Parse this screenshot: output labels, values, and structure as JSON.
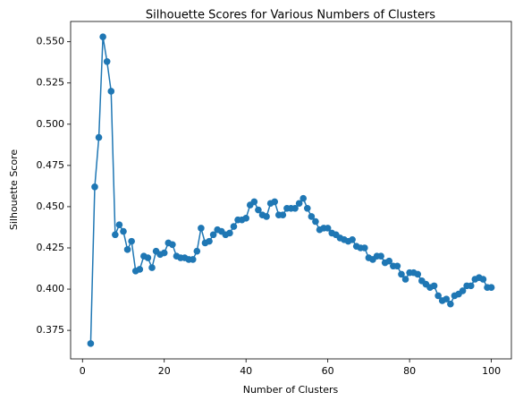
{
  "chart_data": {
    "type": "line",
    "title": "Silhouette Scores for Various Numbers of Clusters",
    "x_label": "Number of Clusters",
    "y_label": "Silhouette Score",
    "x": [
      2,
      3,
      4,
      5,
      6,
      7,
      8,
      9,
      10,
      11,
      12,
      13,
      14,
      15,
      16,
      17,
      18,
      19,
      20,
      21,
      22,
      23,
      24,
      25,
      26,
      27,
      28,
      29,
      30,
      31,
      32,
      33,
      34,
      35,
      36,
      37,
      38,
      39,
      40,
      41,
      42,
      43,
      44,
      45,
      46,
      47,
      48,
      49,
      50,
      51,
      52,
      53,
      54,
      55,
      56,
      57,
      58,
      59,
      60,
      61,
      62,
      63,
      64,
      65,
      66,
      67,
      68,
      69,
      70,
      71,
      72,
      73,
      74,
      75,
      76,
      77,
      78,
      79,
      80,
      81,
      82,
      83,
      84,
      85,
      86,
      87,
      88,
      89,
      90,
      91,
      92,
      93,
      94,
      95,
      96,
      97,
      98,
      99,
      100
    ],
    "series": [
      {
        "name": "Silhouette Score",
        "color": "#1f77b4",
        "values": [
          0.367,
          0.462,
          0.492,
          0.553,
          0.538,
          0.52,
          0.433,
          0.439,
          0.435,
          0.424,
          0.429,
          0.411,
          0.412,
          0.42,
          0.419,
          0.413,
          0.423,
          0.421,
          0.422,
          0.428,
          0.427,
          0.42,
          0.419,
          0.419,
          0.418,
          0.418,
          0.423,
          0.437,
          0.428,
          0.429,
          0.433,
          0.436,
          0.435,
          0.433,
          0.434,
          0.438,
          0.442,
          0.442,
          0.443,
          0.451,
          0.453,
          0.448,
          0.445,
          0.444,
          0.452,
          0.453,
          0.445,
          0.445,
          0.449,
          0.449,
          0.449,
          0.452,
          0.455,
          0.449,
          0.444,
          0.441,
          0.436,
          0.437,
          0.437,
          0.434,
          0.433,
          0.431,
          0.43,
          0.429,
          0.43,
          0.426,
          0.425,
          0.425,
          0.419,
          0.418,
          0.42,
          0.42,
          0.416,
          0.417,
          0.414,
          0.414,
          0.409,
          0.406,
          0.41,
          0.41,
          0.409,
          0.405,
          0.403,
          0.401,
          0.402,
          0.396,
          0.393,
          0.394,
          0.391,
          0.396,
          0.397,
          0.399,
          0.402,
          0.402,
          0.406,
          0.407,
          0.406,
          0.401,
          0.401
        ]
      }
    ],
    "xlim": [
      -2.9,
      104.9
    ],
    "xticks": [
      0,
      20,
      40,
      60,
      80,
      100
    ],
    "ylim": [
      0.3577,
      0.5623
    ],
    "yticks": [
      0.375,
      {
        "value": 0.4,
        "label": "0.400"
      },
      0.425,
      {
        "value": 0.45,
        "label": "0.450"
      },
      0.475,
      {
        "value": 0.5,
        "label": "0.500"
      },
      0.525,
      {
        "value": 0.55,
        "label": "0.550"
      }
    ],
    "grid": false
  }
}
